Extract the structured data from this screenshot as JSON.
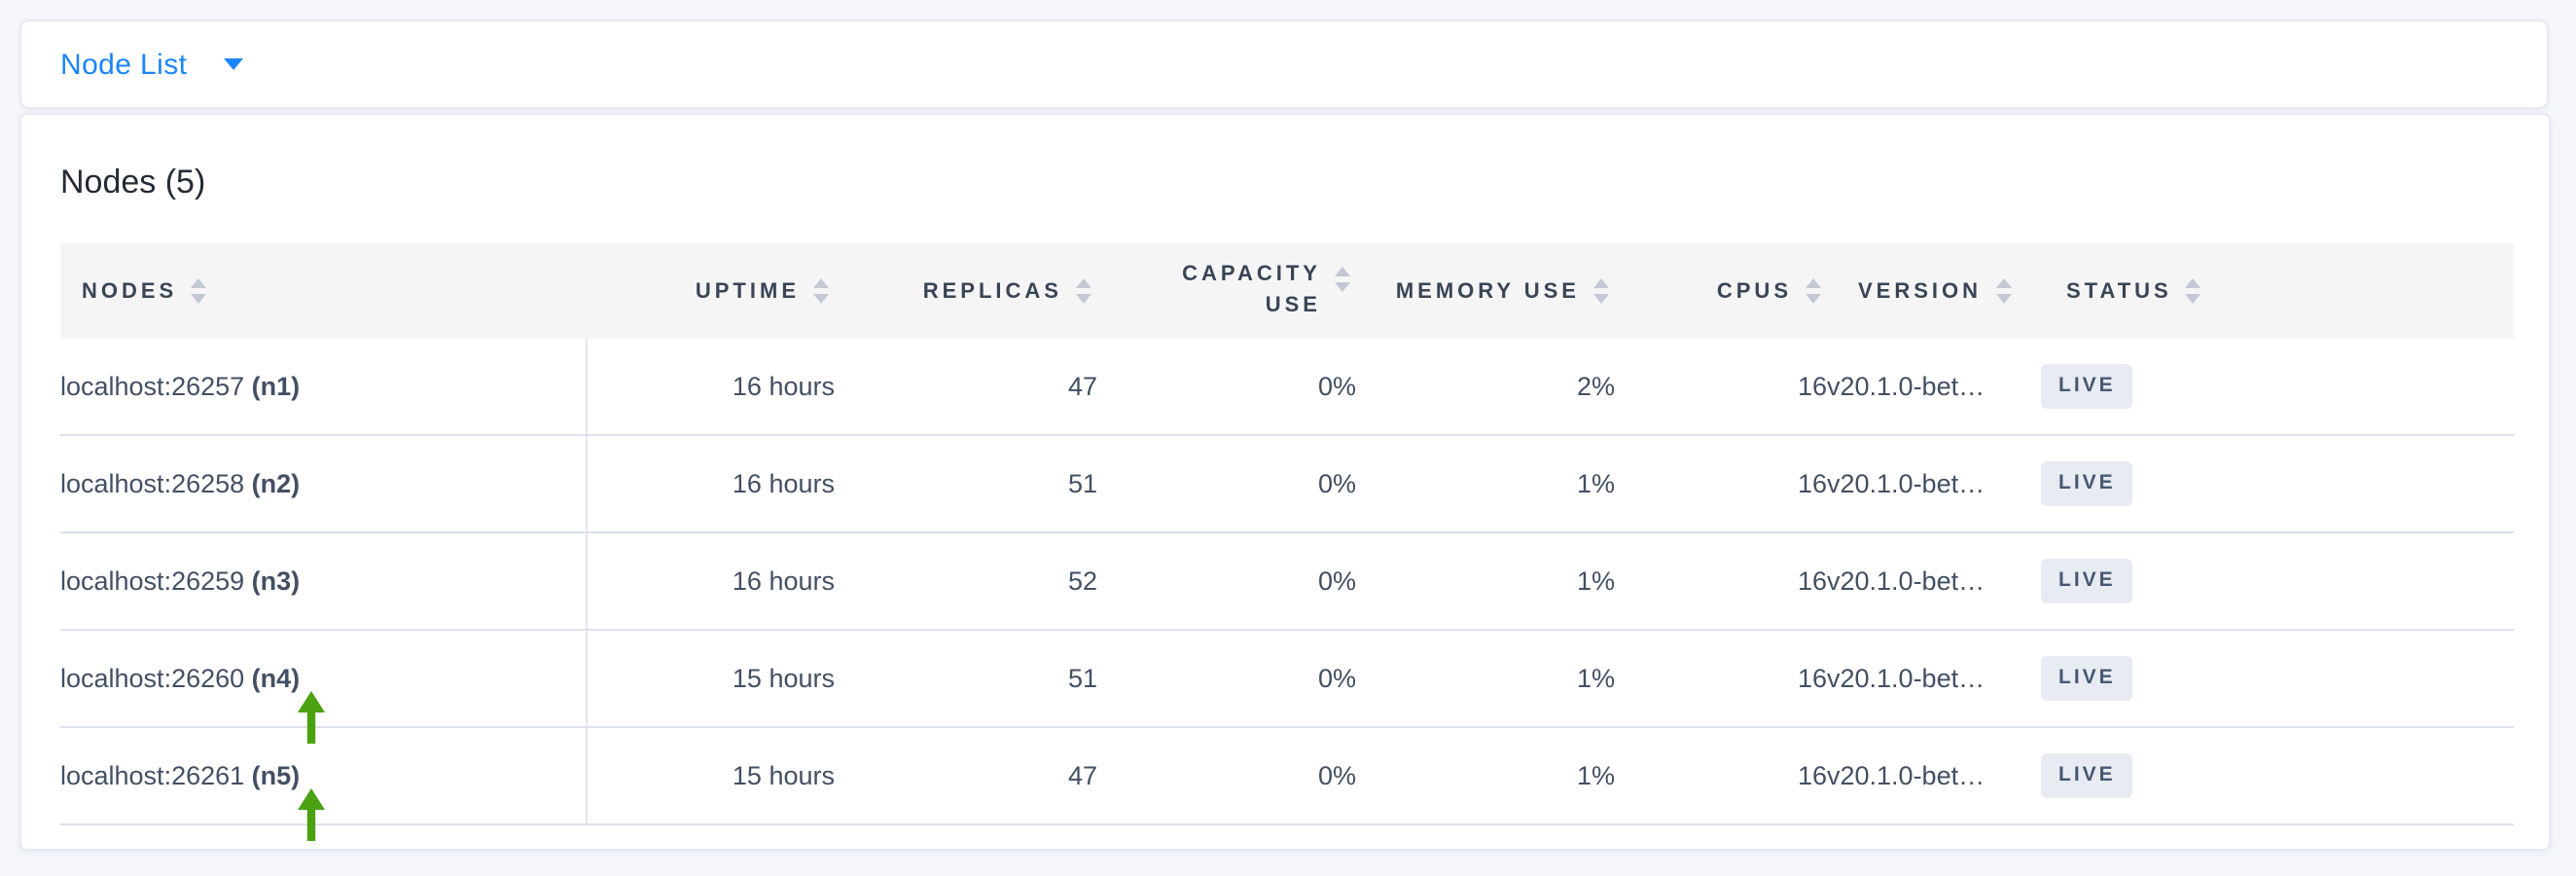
{
  "topbar": {
    "dropdown_label": "Node List"
  },
  "heading": "Nodes (5)",
  "table": {
    "columns": [
      {
        "id": "nodes",
        "label": "NODES",
        "align": "left"
      },
      {
        "id": "uptime",
        "label": "UPTIME",
        "align": "right"
      },
      {
        "id": "replicas",
        "label": "REPLICAS",
        "align": "right"
      },
      {
        "id": "capacity_use",
        "label": "CAPACITY USE",
        "align": "right",
        "wrap": true
      },
      {
        "id": "memory_use",
        "label": "MEMORY USE",
        "align": "right"
      },
      {
        "id": "cpus",
        "label": "CPUS",
        "align": "right"
      },
      {
        "id": "version",
        "label": "VERSION",
        "align": "left"
      },
      {
        "id": "status",
        "label": "STATUS",
        "align": "left"
      }
    ],
    "rows": [
      {
        "address": "localhost:26257",
        "id": "(n1)",
        "uptime": "16 hours",
        "replicas": "47",
        "capacity_use": "0%",
        "memory_use": "2%",
        "cpus": "16",
        "version": "v20.1.0-bet…",
        "status": "LIVE",
        "arrow": false
      },
      {
        "address": "localhost:26258",
        "id": "(n2)",
        "uptime": "16 hours",
        "replicas": "51",
        "capacity_use": "0%",
        "memory_use": "1%",
        "cpus": "16",
        "version": "v20.1.0-bet…",
        "status": "LIVE",
        "arrow": false
      },
      {
        "address": "localhost:26259",
        "id": "(n3)",
        "uptime": "16 hours",
        "replicas": "52",
        "capacity_use": "0%",
        "memory_use": "1%",
        "cpus": "16",
        "version": "v20.1.0-bet…",
        "status": "LIVE",
        "arrow": false
      },
      {
        "address": "localhost:26260",
        "id": "(n4)",
        "uptime": "15 hours",
        "replicas": "51",
        "capacity_use": "0%",
        "memory_use": "1%",
        "cpus": "16",
        "version": "v20.1.0-bet…",
        "status": "LIVE",
        "arrow": true
      },
      {
        "address": "localhost:26261",
        "id": "(n5)",
        "uptime": "15 hours",
        "replicas": "47",
        "capacity_use": "0%",
        "memory_use": "1%",
        "cpus": "16",
        "version": "v20.1.0-bet…",
        "status": "LIVE",
        "arrow": true
      }
    ]
  },
  "annotations": {
    "green_arrow_rows": [
      "(n4)",
      "(n5)"
    ],
    "arrow_direction": "up"
  },
  "icons": {
    "caret": "caret-down-icon",
    "sort": "sort-arrows-icon",
    "annotation": "green-up-arrow-icon"
  },
  "colors": {
    "accent_blue": "#1b85ff",
    "arrow_green": "#4ba112",
    "badge_bg": "#e8ebf2",
    "badge_text": "#475872",
    "header_text": "#394455",
    "page_bg": "#f4f6fa"
  }
}
